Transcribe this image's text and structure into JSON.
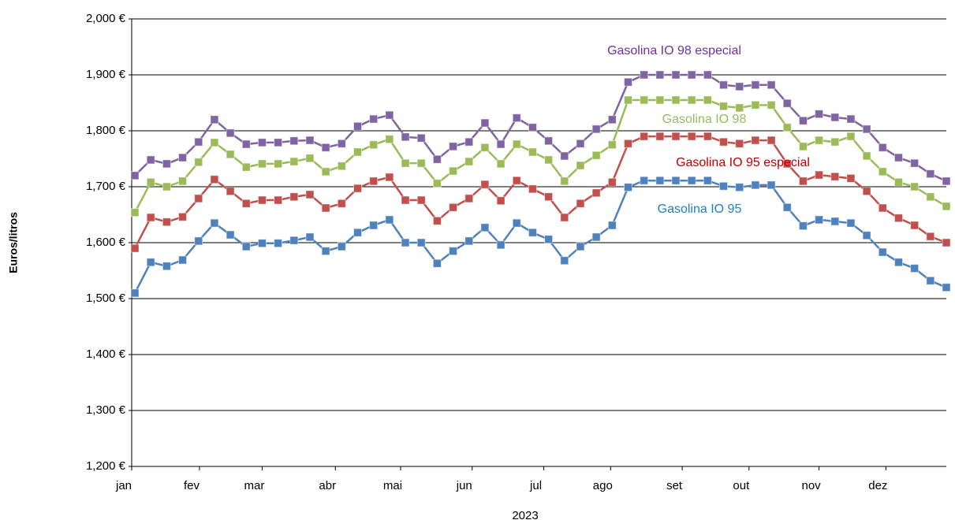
{
  "chart_data": {
    "type": "line",
    "x_label": "2023",
    "y_label": "Euros/litros",
    "x": [
      1,
      2,
      3,
      4,
      5,
      6,
      7,
      8,
      9,
      10,
      11,
      12,
      13,
      14,
      15,
      16,
      17,
      18,
      19,
      20,
      21,
      22,
      23,
      24,
      25,
      26,
      27,
      28,
      29,
      30,
      31,
      32,
      33,
      34,
      35,
      36,
      37,
      38,
      39,
      40,
      41,
      42,
      43,
      44,
      45,
      46,
      47,
      48,
      49,
      50,
      51,
      52
    ],
    "xlim": [
      0.8,
      52
    ],
    "xticks": [
      {
        "value": 0.8,
        "label": "jan"
      },
      {
        "value": 5.06,
        "label": "fev"
      },
      {
        "value": 9.0,
        "label": "mar"
      },
      {
        "value": 13.6,
        "label": "abr"
      },
      {
        "value": 17.7,
        "label": "mai"
      },
      {
        "value": 22.2,
        "label": "jun"
      },
      {
        "value": 26.7,
        "label": "jul"
      },
      {
        "value": 30.9,
        "label": "ago"
      },
      {
        "value": 35.4,
        "label": "set"
      },
      {
        "value": 39.6,
        "label": "out"
      },
      {
        "value": 44.0,
        "label": "nov"
      },
      {
        "value": 48.2,
        "label": "dez"
      }
    ],
    "ylim": [
      1.2,
      2.0
    ],
    "yticks": [
      {
        "value": 1.2,
        "label": "1,200 €"
      },
      {
        "value": 1.3,
        "label": "1,300 €"
      },
      {
        "value": 1.4,
        "label": "1,400 €"
      },
      {
        "value": 1.5,
        "label": "1,500 €"
      },
      {
        "value": 1.6,
        "label": "1,600 €"
      },
      {
        "value": 1.7,
        "label": "1,700 €"
      },
      {
        "value": 1.8,
        "label": "1,800 €"
      },
      {
        "value": 1.9,
        "label": "1,900 €"
      },
      {
        "value": 2.0,
        "label": "2,000 €"
      }
    ],
    "grid": true,
    "series": [
      {
        "name": "Gasolina IO 98 especial",
        "color": "#8064a2",
        "label_color": "#7030a0",
        "values": [
          1.72,
          1.748,
          1.741,
          1.752,
          1.78,
          1.82,
          1.796,
          1.776,
          1.779,
          1.779,
          1.782,
          1.783,
          1.77,
          1.777,
          1.808,
          1.821,
          1.828,
          1.789,
          1.787,
          1.749,
          1.772,
          1.78,
          1.814,
          1.776,
          1.823,
          1.806,
          1.782,
          1.755,
          1.777,
          1.803,
          1.82,
          1.887,
          1.9,
          1.9,
          1.9,
          1.9,
          1.9,
          1.882,
          1.879,
          1.882,
          1.882,
          1.849,
          1.818,
          1.83,
          1.824,
          1.821,
          1.803,
          1.77,
          1.752,
          1.742,
          1.723,
          1.71
        ]
      },
      {
        "name": "Gasolina IO 98",
        "color": "#9bbb59",
        "label_color": "#9bbb59",
        "values": [
          1.654,
          1.708,
          1.7,
          1.71,
          1.744,
          1.779,
          1.758,
          1.735,
          1.741,
          1.741,
          1.745,
          1.751,
          1.727,
          1.737,
          1.762,
          1.775,
          1.785,
          1.742,
          1.742,
          1.706,
          1.728,
          1.745,
          1.77,
          1.741,
          1.776,
          1.762,
          1.748,
          1.71,
          1.738,
          1.756,
          1.775,
          1.855,
          1.855,
          1.855,
          1.855,
          1.855,
          1.855,
          1.844,
          1.841,
          1.846,
          1.846,
          1.806,
          1.772,
          1.783,
          1.78,
          1.79,
          1.755,
          1.727,
          1.708,
          1.7,
          1.682,
          1.665
        ]
      },
      {
        "name": "Gasolina IO 95 especial",
        "color": "#c0504d",
        "label_color": "#c00000",
        "values": [
          1.59,
          1.645,
          1.637,
          1.646,
          1.679,
          1.713,
          1.692,
          1.67,
          1.676,
          1.676,
          1.682,
          1.686,
          1.662,
          1.67,
          1.697,
          1.71,
          1.717,
          1.676,
          1.676,
          1.639,
          1.663,
          1.679,
          1.704,
          1.675,
          1.711,
          1.696,
          1.682,
          1.645,
          1.67,
          1.689,
          1.708,
          1.777,
          1.79,
          1.79,
          1.79,
          1.79,
          1.79,
          1.78,
          1.777,
          1.783,
          1.783,
          1.741,
          1.71,
          1.721,
          1.718,
          1.715,
          1.692,
          1.662,
          1.644,
          1.631,
          1.611,
          1.6
        ]
      },
      {
        "name": "Gasolina IO 95",
        "color": "#4f81bd",
        "label_color": "#1f7fc0",
        "values": [
          1.51,
          1.565,
          1.558,
          1.569,
          1.603,
          1.635,
          1.614,
          1.593,
          1.599,
          1.599,
          1.604,
          1.61,
          1.585,
          1.593,
          1.618,
          1.631,
          1.641,
          1.6,
          1.6,
          1.563,
          1.585,
          1.603,
          1.627,
          1.596,
          1.635,
          1.618,
          1.606,
          1.568,
          1.593,
          1.61,
          1.631,
          1.699,
          1.711,
          1.711,
          1.711,
          1.711,
          1.711,
          1.701,
          1.699,
          1.703,
          1.703,
          1.663,
          1.63,
          1.641,
          1.638,
          1.635,
          1.613,
          1.583,
          1.565,
          1.554,
          1.532,
          1.52
        ]
      }
    ]
  }
}
